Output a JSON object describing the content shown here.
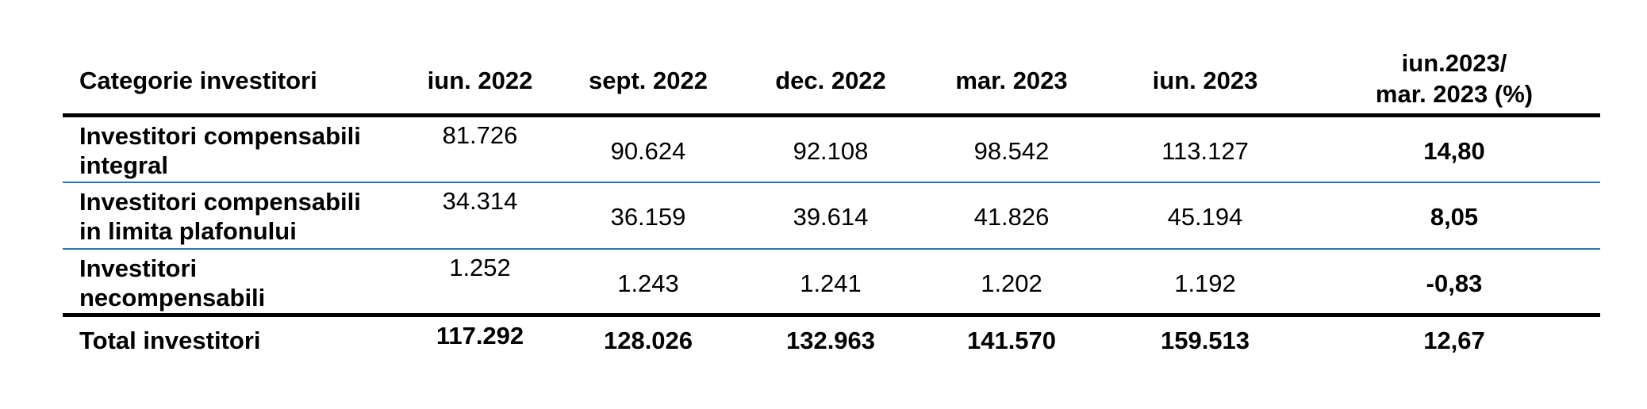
{
  "table": {
    "headers": [
      "Categorie investitori",
      "iun. 2022",
      "sept. 2022",
      "dec. 2022",
      "mar. 2023",
      "iun. 2023",
      "iun.2023/",
      "mar. 2023 (%)"
    ],
    "rows": [
      {
        "label_line1": "Investitori compensabili",
        "label_line2": "integral",
        "values": [
          "81.726",
          "90.624",
          "92.108",
          "98.542",
          "113.127",
          "14,80"
        ]
      },
      {
        "label_line1": "Investitori compensabili",
        "label_line2": "in limita plafonului",
        "values": [
          "34.314",
          "36.159",
          "39.614",
          "41.826",
          "45.194",
          "8,05"
        ]
      },
      {
        "label_line1": "Investitori",
        "label_line2": "necompensabili",
        "values": [
          "1.252",
          "1.243",
          "1.241",
          "1.202",
          "1.192",
          "-0,83"
        ]
      }
    ],
    "total": {
      "label": "Total investitori",
      "values": [
        "117.292",
        "128.026",
        "132.963",
        "141.570",
        "159.513",
        "12,67"
      ]
    }
  },
  "colors": {
    "text": "#000000",
    "rule_thick": "#000000",
    "rule_thin": "#2e75b6"
  }
}
